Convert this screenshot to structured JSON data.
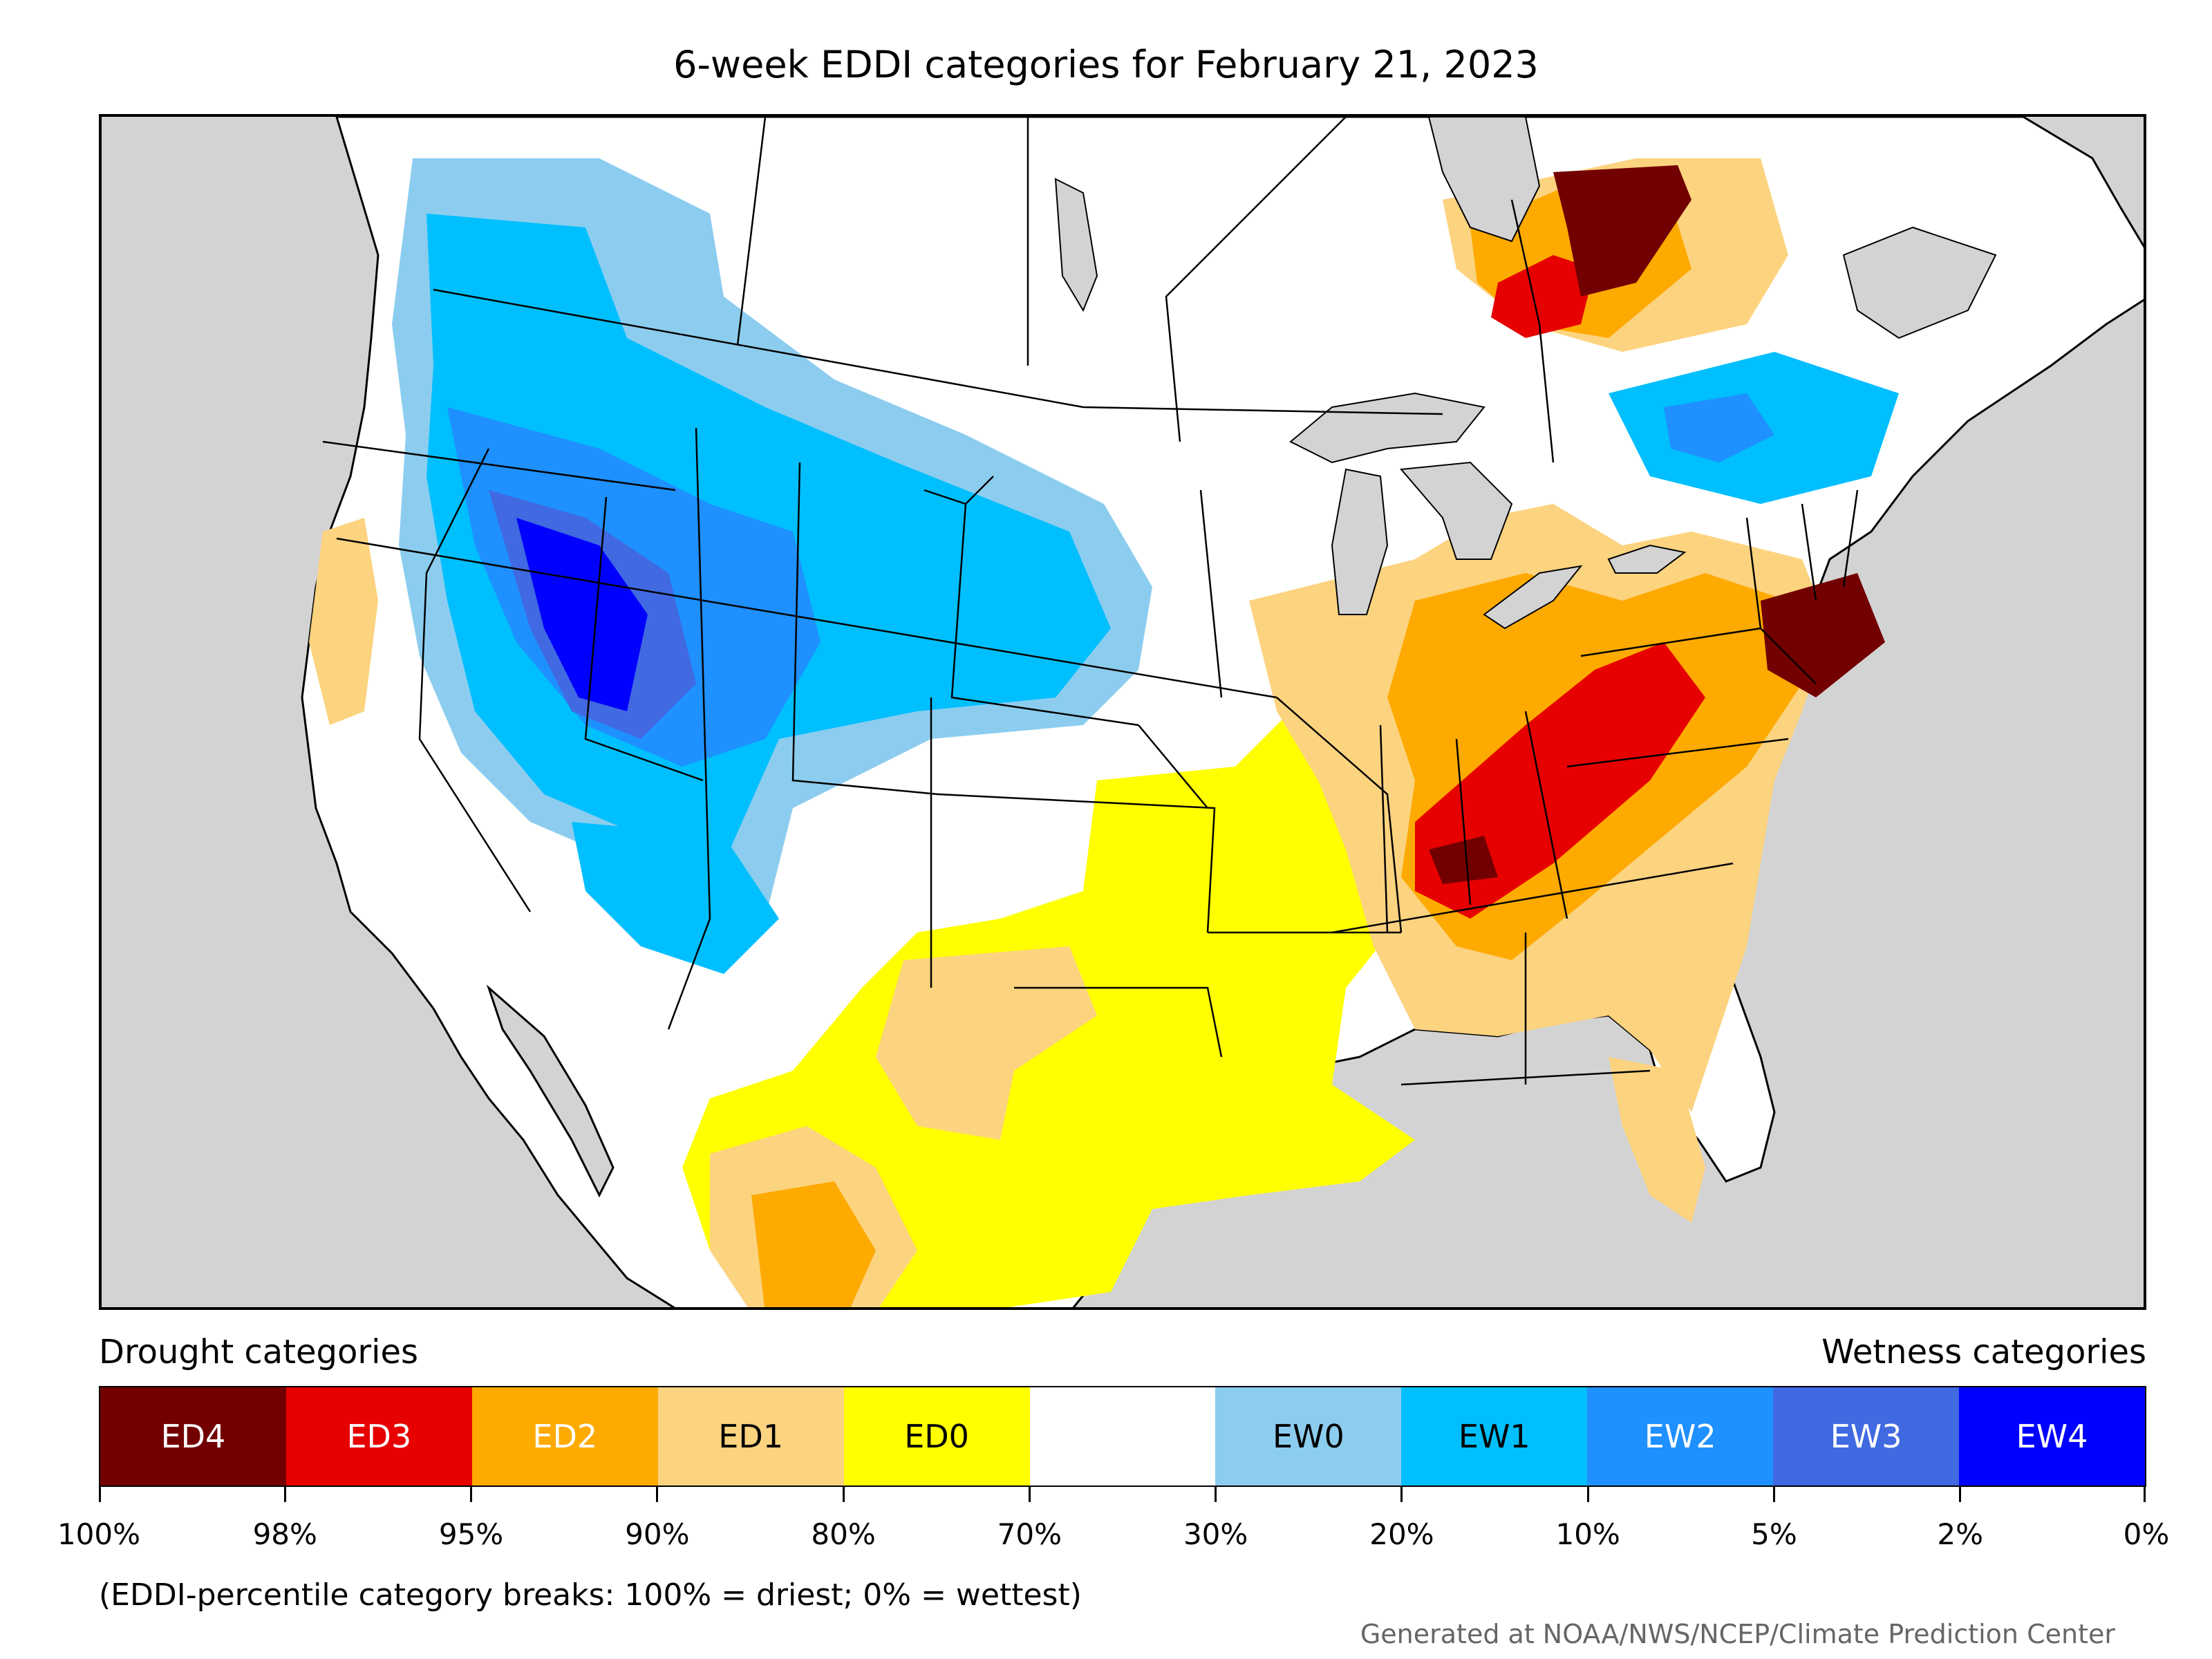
{
  "title": "6-week EDDI categories for February 21, 2023",
  "legend": {
    "drought_heading": "Drought categories",
    "wetness_heading": "Wetness categories",
    "categories": [
      {
        "label": "ED4",
        "color": "#730000",
        "text_color": "#ffffff"
      },
      {
        "label": "ED3",
        "color": "#e60000",
        "text_color": "#ffffff"
      },
      {
        "label": "ED2",
        "color": "#ffaa00",
        "text_color": "#ffffff"
      },
      {
        "label": "ED1",
        "color": "#fcd37f",
        "text_color": "#000000"
      },
      {
        "label": "ED0",
        "color": "#ffff00",
        "text_color": "#000000"
      },
      {
        "label": "",
        "color": "#ffffff",
        "text_color": "#000000"
      },
      {
        "label": "EW0",
        "color": "#8ccdef",
        "text_color": "#000000"
      },
      {
        "label": "EW1",
        "color": "#00bfff",
        "text_color": "#000000"
      },
      {
        "label": "EW2",
        "color": "#1e90ff",
        "text_color": "#ffffff"
      },
      {
        "label": "EW3",
        "color": "#4169e1",
        "text_color": "#ffffff"
      },
      {
        "label": "EW4",
        "color": "#0000ff",
        "text_color": "#ffffff"
      }
    ],
    "ticks": [
      "100%",
      "98%",
      "95%",
      "90%",
      "80%",
      "70%",
      "30%",
      "20%",
      "10%",
      "5%",
      "2%",
      "0%"
    ]
  },
  "note": "(EDDI-percentile category breaks: 100% = driest; 0% = wettest)",
  "credit": "Generated at NOAA/NWS/NCEP/Climate Prediction Center"
}
